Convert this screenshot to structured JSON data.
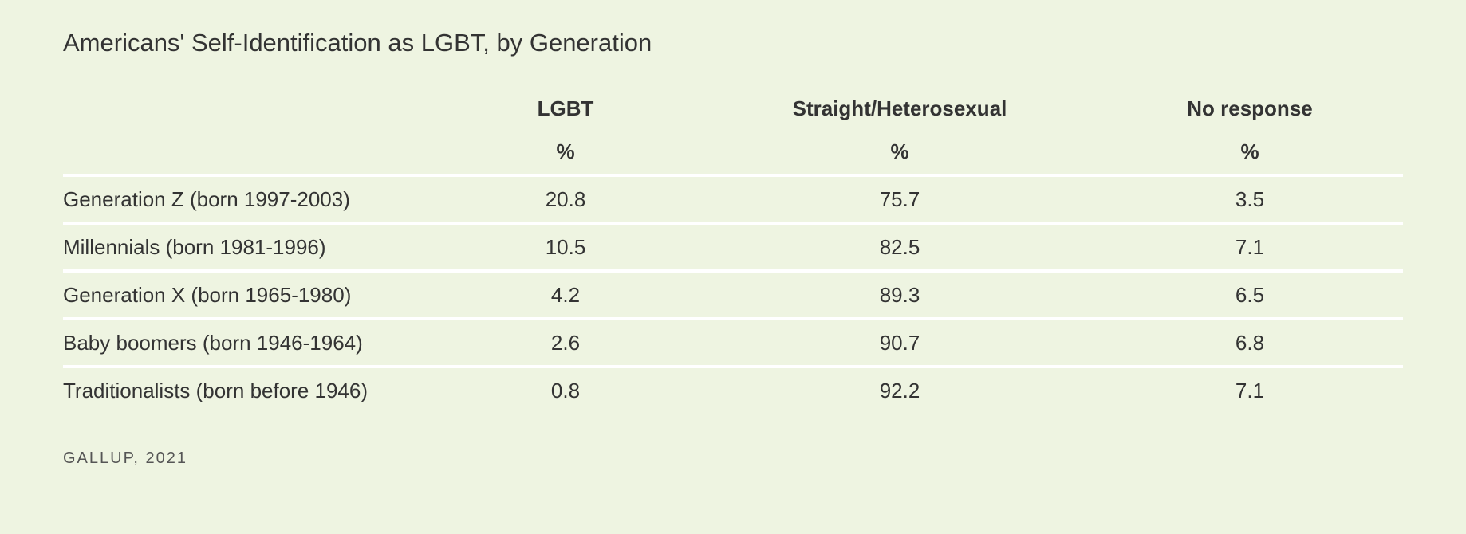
{
  "chart_data": {
    "type": "table",
    "title": "Americans' Self-Identification as LGBT, by Generation",
    "columns": [
      "LGBT",
      "Straight/Heterosexual",
      "No response"
    ],
    "units": [
      "%",
      "%",
      "%"
    ],
    "rows": [
      {
        "label": "Generation Z (born 1997-2003)",
        "values": [
          "20.8",
          "75.7",
          "3.5"
        ]
      },
      {
        "label": "Millennials (born 1981-1996)",
        "values": [
          "10.5",
          "82.5",
          "7.1"
        ]
      },
      {
        "label": "Generation X (born 1965-1980)",
        "values": [
          "4.2",
          "89.3",
          "6.5"
        ]
      },
      {
        "label": "Baby boomers (born 1946-1964)",
        "values": [
          "2.6",
          "90.7",
          "6.8"
        ]
      },
      {
        "label": "Traditionalists (born before 1946)",
        "values": [
          "0.8",
          "92.2",
          "7.1"
        ]
      }
    ],
    "source": "GALLUP, 2021"
  },
  "colors": {
    "background": "#eef4e1",
    "text": "#333333",
    "divider": "#ffffff"
  }
}
